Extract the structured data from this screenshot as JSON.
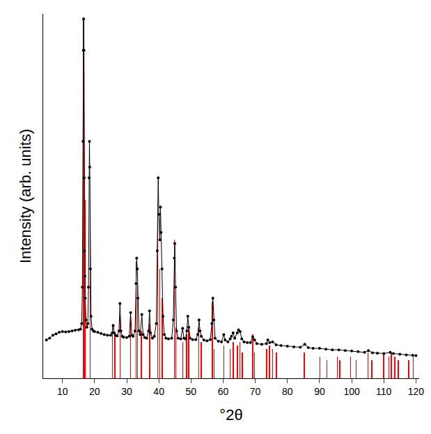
{
  "chart_data": {
    "type": "scatter",
    "x_label": "°2θ",
    "y_label": "Intensity (arb. units)",
    "xlim": [
      4,
      121
    ],
    "xticks": [
      10,
      20,
      30,
      40,
      50,
      60,
      70,
      80,
      90,
      100,
      110,
      120
    ],
    "ylim": [
      0,
      100
    ],
    "yticks": [],
    "tick_labels": "x",
    "grid": false,
    "series": [
      {
        "type": "bar",
        "color": "#ff0000",
        "x": [
          16.6,
          17.0,
          18.6,
          25.6,
          26.3,
          27.9,
          31.2,
          32.9,
          33.4,
          34.6,
          37.2,
          39.6,
          40.3,
          41.0,
          44.8,
          45.3,
          47.4,
          48.6,
          49.3,
          52.4,
          53.2,
          56.7,
          57.2,
          60.2,
          62.2,
          63.1,
          64.4,
          65.2,
          66.0,
          69.2,
          69.8,
          73.6,
          74.4,
          75.4,
          76.6,
          85.3,
          90.1,
          92.3,
          95.5,
          96.3,
          99.7,
          101.4,
          105.1,
          106.3,
          109.9,
          111.6,
          112.3,
          113.4,
          114.5,
          117.8,
          119.2
        ],
        "values": [
          99,
          49,
          44,
          15,
          12,
          17,
          17,
          32,
          26,
          13,
          15,
          45,
          30,
          22,
          38,
          14,
          10,
          12,
          14,
          14,
          10,
          21,
          8,
          9,
          8,
          10,
          9,
          10,
          7,
          12,
          7,
          8,
          9,
          8,
          7,
          7,
          6,
          5,
          6,
          5,
          6,
          5,
          7,
          5,
          7,
          6,
          7,
          6,
          5,
          5,
          6
        ]
      },
      {
        "type": "scatter",
        "color": "#000000",
        "marker": "circle",
        "x": [
          5,
          6,
          7,
          8,
          9,
          10,
          11,
          12,
          13,
          14,
          15,
          15.6,
          16.0,
          16.2,
          16.4,
          16.5,
          16.6,
          16.7,
          16.8,
          16.9,
          17.0,
          17.1,
          17.3,
          17.6,
          17.9,
          18.1,
          18.3,
          18.4,
          18.5,
          18.7,
          18.9,
          19.2,
          19.6,
          20,
          21,
          22,
          23,
          24,
          25,
          25.5,
          25.8,
          26.1,
          26.5,
          27,
          27.6,
          27.9,
          28.2,
          28.6,
          29,
          30,
          30.8,
          31.2,
          31.6,
          32,
          32.6,
          32.9,
          33.1,
          33.3,
          33.5,
          33.8,
          34.2,
          34.7,
          35.1,
          35.6,
          36.2,
          36.8,
          37.1,
          37.4,
          38,
          38.6,
          39.2,
          39.5,
          39.8,
          40.0,
          40.3,
          40.5,
          40.7,
          41.0,
          41.3,
          41.7,
          42.2,
          43,
          44,
          44.5,
          44.8,
          44.95,
          45.2,
          45.5,
          46,
          46.8,
          47.4,
          47.8,
          48.3,
          48.7,
          49.0,
          49.3,
          49.7,
          50.5,
          51.5,
          52.1,
          52.5,
          52.8,
          53.2,
          54,
          55,
          56,
          56.5,
          56.8,
          57.1,
          57.5,
          58.5,
          59.5,
          60.2,
          60.6,
          61.5,
          62.2,
          62.6,
          63.1,
          63.6,
          64.4,
          64.8,
          65.3,
          65.8,
          66.5,
          67.5,
          68.5,
          69.2,
          69.8,
          70.5,
          72,
          73.5,
          73.9,
          74.5,
          75.4,
          76.5,
          78,
          80,
          82,
          84,
          85.4,
          86.5,
          88,
          90,
          92,
          94,
          96,
          98,
          100,
          102,
          104,
          105.2,
          106.5,
          108,
          110,
          112,
          113,
          115,
          117,
          119,
          120
        ],
        "values": [
          10.5,
          11,
          11.8,
          12.2,
          12.6,
          12.8,
          12.7,
          12.8,
          13,
          13.2,
          13.3,
          13.5,
          15,
          25,
          65,
          90,
          98.6,
          90,
          55,
          35,
          28,
          22,
          16,
          14,
          15,
          25,
          55,
          65,
          58,
          30,
          17,
          13.5,
          13,
          12.8,
          12.6,
          12.3,
          12,
          11.8,
          11.8,
          12.5,
          14.5,
          12.5,
          11.8,
          11.6,
          13,
          20.5,
          13,
          11.5,
          11.3,
          11.2,
          11.5,
          18,
          11.8,
          11.5,
          13,
          26,
          33,
          30,
          22,
          13,
          12,
          17.5,
          12,
          11.2,
          11,
          13,
          18.5,
          12.5,
          11,
          11.5,
          15,
          35,
          55,
          45,
          38,
          47,
          40,
          30,
          17,
          12,
          11,
          10.8,
          11,
          16,
          33,
          37,
          25,
          13,
          11,
          10.8,
          13.7,
          11,
          10.8,
          13,
          17,
          14,
          11,
          10.6,
          10.6,
          12,
          16,
          13,
          11.5,
          10.5,
          10.3,
          10.6,
          15,
          22,
          16,
          11,
          10.2,
          10,
          12,
          10.5,
          10,
          10.8,
          11.5,
          12.5,
          11,
          12.5,
          13.3,
          12.8,
          10.8,
          10,
          9.8,
          9.8,
          11.4,
          10.5,
          9.5,
          9.3,
          9.5,
          10.5,
          9.8,
          10,
          9.2,
          9,
          8.8,
          8.6,
          8.5,
          9.3,
          8.4,
          8.2,
          8.2,
          8,
          7.8,
          7.8,
          7.6,
          7.5,
          7.3,
          7.1,
          7.6,
          7,
          6.9,
          6.8,
          7.1,
          6.8,
          6.6,
          6.4,
          6.3,
          6.2
        ]
      }
    ]
  }
}
